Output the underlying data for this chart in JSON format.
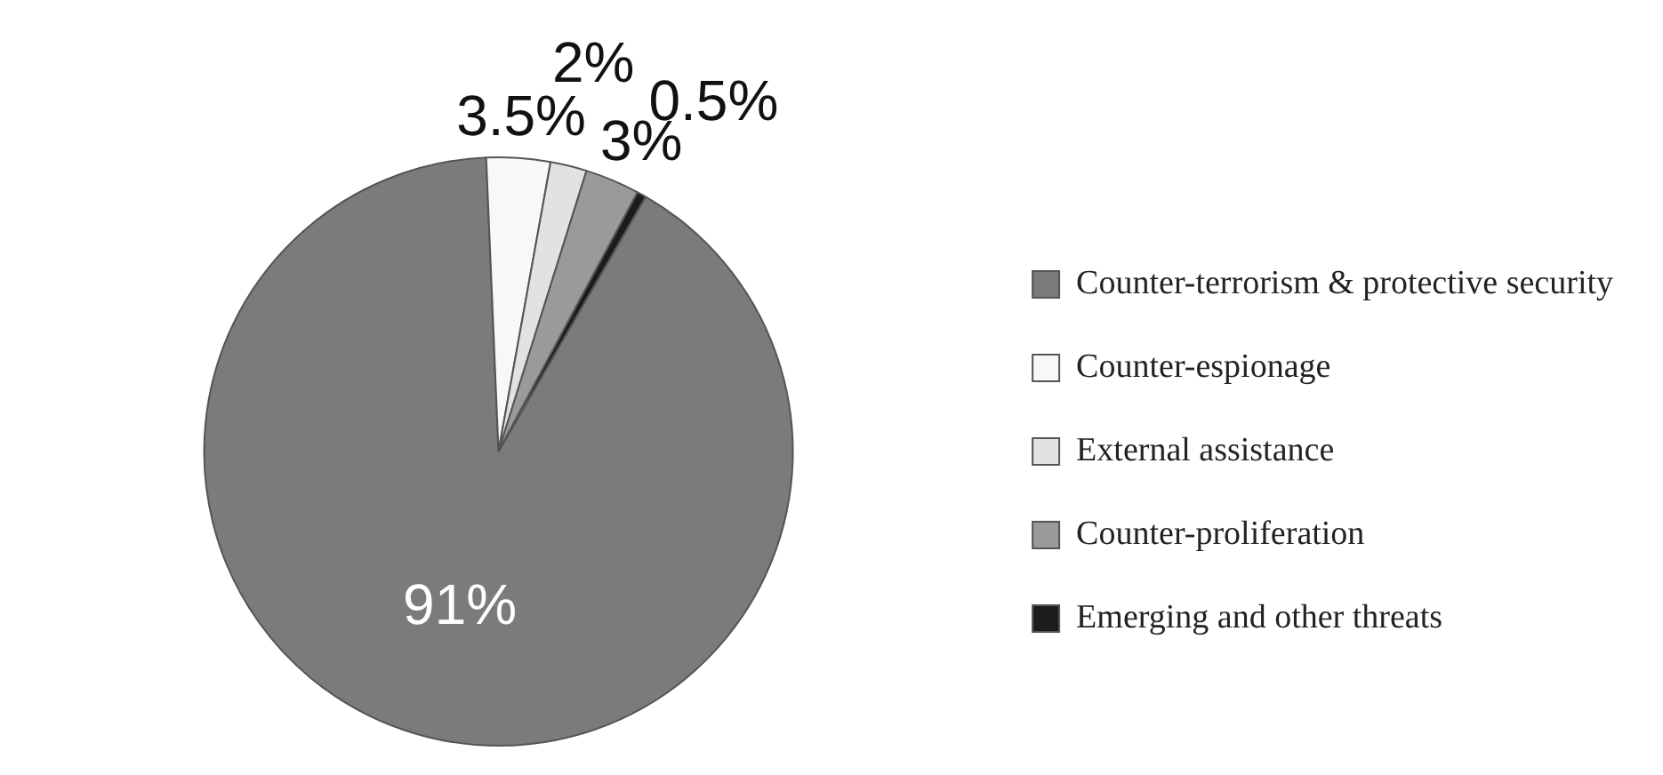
{
  "chart_data": {
    "type": "pie",
    "categories": [
      "Counter-terrorism & protective security",
      "Counter-espionage",
      "External assistance",
      "Counter-proliferation",
      "Emerging and other threats"
    ],
    "values": [
      91,
      3.5,
      2,
      3,
      0.5
    ],
    "colors": [
      "#7b7b7b",
      "#f8f8f8",
      "#e2e2e2",
      "#9a9a9a",
      "#1c1c1c"
    ],
    "value_labels": [
      "91%",
      "3.5%",
      "2%",
      "3%",
      "0.5%"
    ],
    "legend": "right"
  }
}
